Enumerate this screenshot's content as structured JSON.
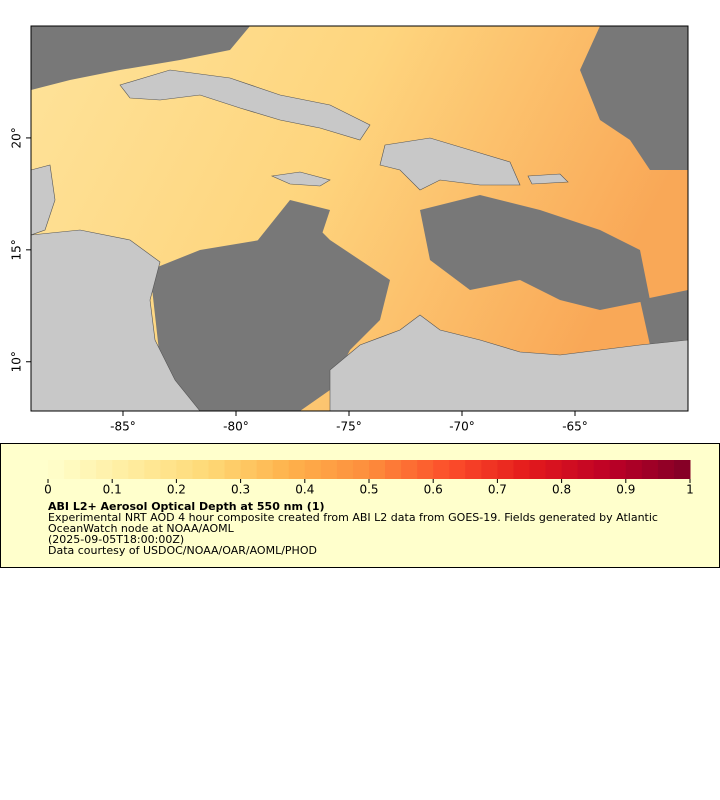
{
  "map": {
    "xlim": [
      -89.07,
      -60.0
    ],
    "ylim": [
      7.8,
      25.0
    ],
    "xticks": [
      {
        "value": -85,
        "label": "-85°"
      },
      {
        "value": -80,
        "label": "-80°"
      },
      {
        "value": -75,
        "label": "-75°"
      },
      {
        "value": -70,
        "label": "-70°"
      },
      {
        "value": -65,
        "label": "-65°"
      }
    ],
    "yticks": [
      {
        "value": 10,
        "label": "10°"
      },
      {
        "value": 15,
        "label": "15°"
      },
      {
        "value": 20,
        "label": "20°"
      }
    ]
  },
  "colorbar": {
    "range": [
      0,
      1
    ],
    "ticks": [
      0,
      0.1,
      0.2,
      0.3,
      0.4,
      0.5,
      0.6,
      0.7,
      0.8,
      0.9,
      1
    ],
    "colors": [
      "#ffffcc",
      "#ffeda0",
      "#fed976",
      "#feb24c",
      "#fd8d3c",
      "#fc4e2a",
      "#e31a1c",
      "#bd0026",
      "#800026"
    ],
    "title": "ABI L2+ Aerosol Optical Depth at 550 nm (1)",
    "description": "Experimental NRT AOD 4 hour composite created from ABI L2 data from GOES-19. Fields generated by Atlantic OceanWatch node at NOAA/AOML",
    "time": "(2025-09-05T18:00:00Z)",
    "credit": "Data courtesy of USDOC/NOAA/OAR/AOML/PHOD"
  }
}
